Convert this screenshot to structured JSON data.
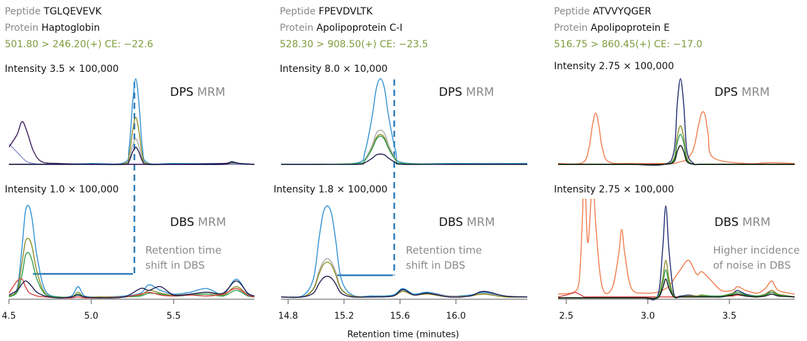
{
  "chart_data": [
    {
      "type": "line",
      "peptide_label": "Peptide",
      "peptide": "TGLQEVEVK",
      "protein_label": "Protein",
      "protein": "Haptoglobin",
      "transition": "501.80 > 246.20(+) CE: −22.6",
      "intensity": "Intensity 3.5 × 100,000",
      "sample": "DPS",
      "method": "MRM",
      "xlim": [
        4.5,
        5.99
      ],
      "ylim": [
        0,
        100
      ],
      "x": [
        4.5,
        4.55,
        4.58,
        4.61,
        4.65,
        4.7,
        4.8,
        5.0,
        5.2,
        5.23,
        5.25,
        5.27,
        5.29,
        5.31,
        5.34,
        5.5,
        5.8,
        5.85,
        5.9,
        5.99
      ],
      "series": [
        {
          "color": "#2e8fd1",
          "values": [
            0,
            0,
            0,
            0,
            0,
            0,
            0,
            1,
            2,
            20,
            70,
            100,
            70,
            20,
            2,
            1,
            1,
            2,
            1,
            0
          ]
        },
        {
          "color": "#a8a8a8",
          "values": [
            0,
            0,
            0,
            0,
            0,
            0,
            0,
            0,
            0,
            6,
            21,
            30,
            21,
            6,
            0,
            0,
            0,
            0,
            0,
            0
          ]
        },
        {
          "color": "#8c8c28",
          "values": [
            0,
            0,
            0,
            0,
            0,
            0,
            0,
            0,
            1,
            11,
            38,
            55,
            38,
            11,
            1,
            0,
            0,
            1,
            0,
            0
          ]
        },
        {
          "color": "#8c8cd0",
          "values": [
            24,
            14,
            8,
            3,
            1,
            0,
            0,
            0,
            0,
            0,
            0,
            0,
            0,
            0,
            0,
            0,
            0,
            0,
            0,
            0
          ]
        },
        {
          "color": "#3b1a5a",
          "values": [
            20,
            35,
            50,
            38,
            15,
            3,
            1,
            0,
            0,
            0,
            0,
            0,
            0,
            0,
            0,
            0,
            1,
            3,
            1,
            0
          ]
        },
        {
          "color": "#1c1c50",
          "values": [
            0,
            0,
            0,
            0,
            0,
            0,
            0,
            0,
            0,
            4,
            14,
            20,
            14,
            4,
            0,
            0,
            0,
            3,
            1,
            0
          ]
        }
      ]
    },
    {
      "type": "line",
      "intensity": "Intensity 1.0 × 100,000",
      "sample": "DBS",
      "method": "MRM",
      "annotation": [
        "Retention time",
        "shift in DBS"
      ],
      "xlim": [
        4.5,
        5.99
      ],
      "ylim": [
        0,
        100
      ],
      "xticks": [
        4.5,
        {
          "value": 5,
          "label": "5.0"
        },
        5.5
      ],
      "x": [
        4.5,
        4.55,
        4.58,
        4.6,
        4.62,
        4.64,
        4.67,
        4.72,
        4.8,
        4.88,
        4.92,
        4.96,
        5.05,
        5.2,
        5.3,
        5.35,
        5.42,
        5.5,
        5.6,
        5.7,
        5.8,
        5.88,
        5.95,
        5.99
      ],
      "series": [
        {
          "color": "#2e8fd1",
          "values": [
            2,
            10,
            55,
            92,
            98,
            85,
            45,
            8,
            1,
            2,
            12,
            2,
            1,
            2,
            5,
            14,
            8,
            4,
            6,
            10,
            4,
            20,
            4,
            2
          ]
        },
        {
          "color": "#8c8c28",
          "values": [
            2,
            8,
            38,
            60,
            63,
            55,
            28,
            5,
            1,
            1,
            6,
            1,
            1,
            1,
            3,
            8,
            5,
            3,
            4,
            6,
            3,
            12,
            3,
            1
          ]
        },
        {
          "color": "#2e9e4a",
          "values": [
            1,
            6,
            25,
            45,
            48,
            40,
            20,
            4,
            1,
            1,
            4,
            1,
            0,
            1,
            2,
            5,
            4,
            2,
            3,
            4,
            2,
            8,
            2,
            1
          ]
        },
        {
          "color": "#d64040",
          "values": [
            5,
            18,
            20,
            12,
            6,
            4,
            2,
            1,
            0,
            0,
            1,
            0,
            0,
            1,
            4,
            6,
            3,
            2,
            3,
            2,
            4,
            10,
            3,
            1
          ]
        },
        {
          "color": "#1c1c50",
          "values": [
            3,
            8,
            15,
            18,
            16,
            12,
            6,
            2,
            0,
            1,
            3,
            1,
            0,
            1,
            10,
            8,
            12,
            3,
            4,
            6,
            5,
            18,
            5,
            2
          ]
        }
      ]
    },
    {
      "type": "line",
      "peptide_label": "Peptide",
      "peptide": "FPEVDVLTK",
      "protein_label": "Protein",
      "protein": "Apolipoprotein C-I",
      "transition": "528.30 > 908.50(+) CE: −23.5",
      "intensity": "Intensity 8.0 × 10,000",
      "sample": "DPS",
      "method": "MRM",
      "xlim": [
        14.75,
        16.51
      ],
      "ylim": [
        0,
        100
      ],
      "x": [
        14.75,
        15.0,
        15.3,
        15.35,
        15.4,
        15.43,
        15.46,
        15.49,
        15.52,
        15.57,
        15.62,
        16.0,
        16.51
      ],
      "series": [
        {
          "color": "#2e8fd1",
          "values": [
            0,
            0,
            2,
            15,
            55,
            88,
            100,
            88,
            55,
            15,
            2,
            1,
            1
          ]
        },
        {
          "color": "#a8a8a8",
          "values": [
            0,
            0,
            1,
            6,
            22,
            36,
            40,
            36,
            22,
            6,
            1,
            0,
            0
          ]
        },
        {
          "color": "#8c8c28",
          "values": [
            0,
            0,
            1,
            5,
            19,
            31,
            35,
            31,
            19,
            5,
            1,
            0,
            0
          ]
        },
        {
          "color": "#2e9e4a",
          "values": [
            0,
            0,
            1,
            5,
            18,
            29,
            33,
            29,
            18,
            5,
            1,
            0,
            0
          ]
        },
        {
          "color": "#1c1c50",
          "values": [
            0,
            0,
            0,
            2,
            7,
            11,
            12,
            11,
            7,
            2,
            0,
            0,
            0
          ]
        }
      ]
    },
    {
      "type": "line",
      "intensity": "Intensity 1.8 × 100,000",
      "sample": "DBS",
      "method": "MRM",
      "annotation": [
        "Retention time",
        "shift in DBS"
      ],
      "xlabel": "Retention time (minutes)",
      "xlim": [
        14.75,
        16.51
      ],
      "ylim": [
        0,
        100
      ],
      "xticks": [
        14.8,
        15.2,
        15.6,
        {
          "value": 16,
          "label": "16.0"
        }
      ],
      "x": [
        14.75,
        14.9,
        14.98,
        15.02,
        15.05,
        15.08,
        15.11,
        15.14,
        15.18,
        15.26,
        15.4,
        15.55,
        15.62,
        15.7,
        15.8,
        15.95,
        16.1,
        16.2,
        16.35,
        16.51
      ],
      "series": [
        {
          "color": "#2e8fd1",
          "values": [
            1,
            2,
            20,
            62,
            90,
            98,
            90,
            62,
            20,
            3,
            2,
            3,
            10,
            4,
            6,
            2,
            3,
            6,
            2,
            1
          ]
        },
        {
          "color": "#a8a8a8",
          "values": [
            1,
            1,
            10,
            28,
            38,
            42,
            38,
            28,
            10,
            2,
            1,
            2,
            8,
            3,
            5,
            2,
            2,
            5,
            1,
            1
          ]
        },
        {
          "color": "#8c8c28",
          "values": [
            1,
            1,
            9,
            25,
            35,
            38,
            35,
            25,
            9,
            2,
            1,
            2,
            7,
            3,
            4,
            1,
            2,
            4,
            1,
            1
          ]
        },
        {
          "color": "#1c1c50",
          "values": [
            1,
            1,
            5,
            15,
            21,
            23,
            21,
            15,
            5,
            1,
            1,
            2,
            9,
            3,
            5,
            1,
            2,
            7,
            2,
            1
          ]
        }
      ]
    },
    {
      "type": "line",
      "peptide_label": "Peptide",
      "peptide": "ATVVYQGER",
      "protein_label": "Protein",
      "protein": "Apolipoprotein E",
      "transition": "516.75 > 860.45(+) CE: −17.0",
      "intensity": "Intensity 2.75 × 100,000",
      "sample": "DPS",
      "method": "MRM",
      "xlim": [
        2.45,
        3.9
      ],
      "ylim": [
        0,
        100
      ],
      "x": [
        2.45,
        2.6,
        2.64,
        2.66,
        2.68,
        2.7,
        2.72,
        2.76,
        2.9,
        3.1,
        3.16,
        3.18,
        3.2,
        3.22,
        3.24,
        3.28,
        3.31,
        3.33,
        3.35,
        3.37,
        3.4,
        3.6,
        3.75,
        3.9
      ],
      "series": [
        {
          "color": "#f07a4a",
          "values": [
            1,
            2,
            20,
            45,
            60,
            45,
            20,
            3,
            1,
            1,
            1,
            2,
            3,
            4,
            6,
            18,
            45,
            60,
            58,
            35,
            8,
            1,
            2,
            1
          ]
        },
        {
          "color": "#1c2a70",
          "values": [
            0,
            0,
            0,
            0,
            0,
            0,
            0,
            0,
            0,
            0,
            15,
            70,
            100,
            70,
            15,
            1,
            0,
            0,
            0,
            0,
            0,
            0,
            0,
            0
          ]
        },
        {
          "color": "#8c8c28",
          "values": [
            0,
            0,
            0,
            0,
            0,
            0,
            0,
            0,
            0,
            0,
            7,
            32,
            45,
            32,
            7,
            0,
            0,
            0,
            0,
            0,
            0,
            0,
            0,
            0
          ]
        },
        {
          "color": "#2e9e4a",
          "values": [
            0,
            0,
            0,
            0,
            0,
            0,
            0,
            0,
            0,
            0,
            5,
            25,
            35,
            25,
            5,
            0,
            0,
            0,
            0,
            0,
            0,
            0,
            0,
            0
          ]
        },
        {
          "color": "#111111",
          "values": [
            0,
            0,
            0,
            0,
            0,
            0,
            0,
            0,
            0,
            0,
            3,
            15,
            22,
            15,
            3,
            0,
            0,
            0,
            0,
            0,
            0,
            0,
            0,
            0
          ]
        }
      ]
    },
    {
      "type": "line",
      "intensity": "Intensity 2.75 × 100,000",
      "sample": "DBS",
      "method": "MRM",
      "annotation": [
        "Higher incidence",
        "of noise in DBS"
      ],
      "xlim": [
        2.45,
        3.9
      ],
      "ylim": [
        0,
        100
      ],
      "xticks": [
        2.5,
        {
          "value": 3,
          "label": "3.0"
        },
        3.5
      ],
      "x": [
        2.45,
        2.52,
        2.55,
        2.58,
        2.6,
        2.61,
        2.63,
        2.65,
        2.66,
        2.68,
        2.72,
        2.78,
        2.82,
        2.84,
        2.86,
        2.9,
        2.98,
        3.06,
        3.09,
        3.11,
        3.13,
        3.16,
        3.2,
        3.25,
        3.3,
        3.33,
        3.38,
        3.45,
        3.52,
        3.55,
        3.6,
        3.67,
        3.72,
        3.76,
        3.8,
        3.9
      ],
      "series": [
        {
          "color": "#f07a4a",
          "values": [
            4,
            5,
            6,
            20,
            90,
            150,
            60,
            100,
            150,
            80,
            12,
            10,
            45,
            73,
            45,
            10,
            5,
            6,
            8,
            10,
            12,
            20,
            30,
            40,
            25,
            28,
            20,
            8,
            8,
            12,
            8,
            5,
            10,
            18,
            8,
            4
          ]
        },
        {
          "color": "#d64040",
          "values": [
            1,
            4,
            6,
            4,
            2,
            1,
            1,
            1,
            1,
            1,
            1,
            1,
            1,
            1,
            1,
            1,
            1,
            1,
            1,
            1,
            1,
            1,
            1,
            1,
            1,
            1,
            1,
            2,
            2,
            3,
            2,
            1,
            4,
            8,
            3,
            1
          ]
        },
        {
          "color": "#1c2a70",
          "values": [
            0,
            0,
            0,
            0,
            0,
            0,
            0,
            0,
            0,
            0,
            0,
            0,
            0,
            0,
            0,
            0,
            0,
            2,
            50,
            98,
            50,
            4,
            2,
            3,
            2,
            3,
            2,
            2,
            5,
            8,
            4,
            2,
            4,
            6,
            3,
            1
          ]
        },
        {
          "color": "#8c8c28",
          "values": [
            0,
            0,
            0,
            0,
            0,
            0,
            0,
            0,
            0,
            0,
            0,
            0,
            0,
            0,
            0,
            0,
            0,
            1,
            20,
            40,
            20,
            2,
            1,
            2,
            2,
            3,
            2,
            2,
            5,
            6,
            3,
            2,
            4,
            8,
            4,
            1
          ]
        },
        {
          "color": "#2e9e4a",
          "values": [
            0,
            0,
            0,
            0,
            0,
            0,
            0,
            0,
            0,
            0,
            0,
            0,
            0,
            0,
            0,
            0,
            0,
            1,
            15,
            30,
            15,
            1,
            1,
            1,
            1,
            2,
            2,
            2,
            4,
            6,
            3,
            2,
            3,
            6,
            3,
            1
          ]
        },
        {
          "color": "#111111",
          "values": [
            0,
            0,
            0,
            0,
            0,
            0,
            0,
            0,
            0,
            0,
            0,
            0,
            0,
            0,
            0,
            0,
            0,
            0,
            10,
            20,
            10,
            1,
            1,
            1,
            1,
            1,
            1,
            1,
            3,
            4,
            2,
            1,
            2,
            4,
            2,
            1
          ]
        }
      ]
    }
  ]
}
